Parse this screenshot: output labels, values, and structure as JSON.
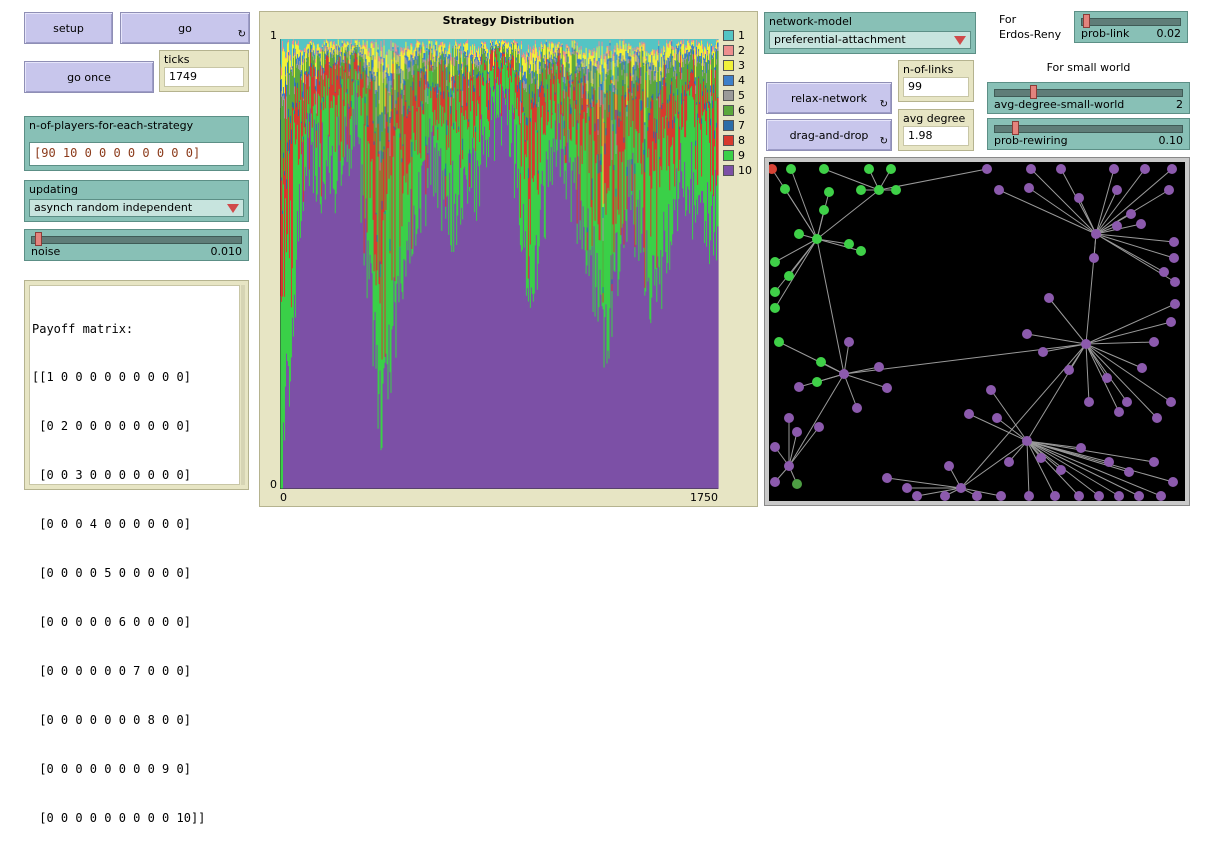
{
  "buttons": {
    "setup": "setup",
    "go": "go",
    "go_once": "go once",
    "relax_network": "relax-network",
    "drag_and_drop": "drag-and-drop",
    "forever_glyph": "↻"
  },
  "monitors": {
    "ticks_label": "ticks",
    "ticks_value": "1749",
    "n_of_links_label": "n-of-links",
    "n_of_links_value": "99",
    "avg_degree_label": "avg degree",
    "avg_degree_value": "1.98"
  },
  "inputs": {
    "players_label": "n-of-players-for-each-strategy",
    "players_value": "[90 10 0 0 0 0 0 0 0 0]"
  },
  "choosers": {
    "updating_label": "updating",
    "updating_value": "asynch random independent",
    "network_label": "network-model",
    "network_value": "preferential-attachment"
  },
  "sliders": {
    "noise": {
      "name": "noise",
      "value": "0.010",
      "fraction": 0.02
    },
    "prob_link": {
      "name": "prob-link",
      "value": "0.02",
      "fraction": 0.02
    },
    "avg_degree_small_world": {
      "name": "avg-degree-small-world",
      "value": "2",
      "fraction": 0.2
    },
    "prob_rewiring": {
      "name": "prob-rewiring",
      "value": "0.10",
      "fraction": 0.1
    }
  },
  "texts": {
    "erdos_label": "For\nErdos-Reny",
    "small_world_label": "For small world"
  },
  "payoff": {
    "lines": [
      "Payoff matrix:",
      "[[1 0 0 0 0 0 0 0 0 0]",
      " [0 2 0 0 0 0 0 0 0 0]",
      " [0 0 3 0 0 0 0 0 0 0]",
      " [0 0 0 4 0 0 0 0 0 0]",
      " [0 0 0 0 5 0 0 0 0 0]",
      " [0 0 0 0 0 6 0 0 0 0]",
      " [0 0 0 0 0 0 7 0 0 0]",
      " [0 0 0 0 0 0 0 8 0 0]",
      " [0 0 0 0 0 0 0 0 9 0]",
      " [0 0 0 0 0 0 0 0 0 10]]"
    ]
  },
  "chart_data": {
    "type": "area",
    "title": "Strategy Distribution",
    "xlim": [
      0,
      1750
    ],
    "ylim": [
      0,
      1
    ],
    "x_ticks": [
      "0",
      "1750"
    ],
    "y_ticks": [
      "0",
      "1"
    ],
    "legend_position": "right",
    "series": [
      {
        "name": "1",
        "color": "#54c4c4"
      },
      {
        "name": "2",
        "color": "#ed8e8e"
      },
      {
        "name": "3",
        "color": "#f1f139"
      },
      {
        "name": "4",
        "color": "#3d7fc9"
      },
      {
        "name": "5",
        "color": "#9a9a9a"
      },
      {
        "name": "6",
        "color": "#5aa83d"
      },
      {
        "name": "7",
        "color": "#2c6da8"
      },
      {
        "name": "8",
        "color": "#d73a2e"
      },
      {
        "name": "9",
        "color": "#3ad048"
      },
      {
        "name": "10",
        "color": "#7c50a6"
      }
    ],
    "samples_x": [
      0,
      100,
      200,
      300,
      400,
      500,
      600,
      700,
      800,
      900,
      1000,
      1100,
      1200,
      1300,
      1400,
      1500,
      1600,
      1700,
      1750
    ],
    "samples_strategy10": [
      0.02,
      0.78,
      0.68,
      0.82,
      0.15,
      0.55,
      0.72,
      0.62,
      0.72,
      0.9,
      0.45,
      0.82,
      0.62,
      0.35,
      0.66,
      0.42,
      0.72,
      0.6,
      0.6
    ]
  },
  "network": {
    "colors": {
      "background": "#000000",
      "link": "#9a9a9a",
      "purple": "#8c5aad",
      "green": "#3fd048",
      "red": "#d84335",
      "dark_green": "#4d9e43"
    }
  }
}
